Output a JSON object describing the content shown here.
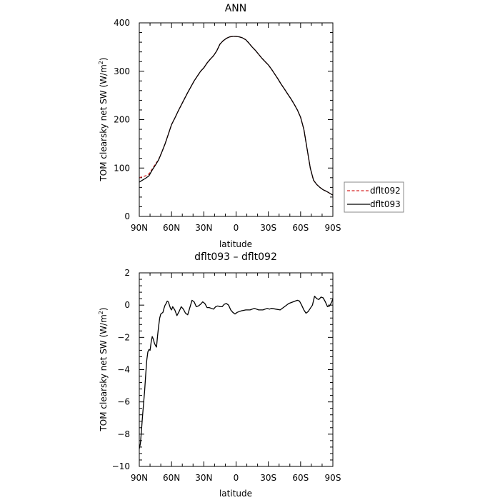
{
  "chart_data": [
    {
      "type": "line",
      "title": "ANN",
      "xlabel": "latitude",
      "ylabel": "TOM clearsky net SW (W/m²)",
      "ylabel_text": "TOM clearsky net SW (W/m",
      "ylabel_sup": "2",
      "ylabel_close": ")",
      "xlim": [
        90,
        -90
      ],
      "ylim": [
        0,
        400
      ],
      "xticks": [
        90,
        60,
        30,
        0,
        -30,
        -60,
        -90
      ],
      "xtick_labels": [
        "90N",
        "60N",
        "30N",
        "0",
        "30S",
        "60S",
        "90S"
      ],
      "yticks": [
        0,
        100,
        200,
        300,
        400
      ],
      "ytick_labels": [
        "0",
        "100",
        "200",
        "300",
        "400"
      ],
      "legend_position": "right, outside plot",
      "series": [
        {
          "name": "dflt092",
          "color": "#d62728",
          "dash": "dashed",
          "x": [
            90,
            87,
            84,
            81,
            78,
            75,
            72,
            69,
            66,
            63,
            60,
            57,
            54,
            51,
            48,
            45,
            42,
            39,
            36,
            33,
            30,
            27,
            24,
            21,
            18,
            15,
            12,
            9,
            6,
            3,
            0,
            -3,
            -6,
            -9,
            -12,
            -15,
            -18,
            -21,
            -24,
            -27,
            -30,
            -33,
            -36,
            -39,
            -42,
            -45,
            -48,
            -51,
            -54,
            -57,
            -60,
            -63,
            -66,
            -69,
            -72,
            -75,
            -78,
            -81,
            -84,
            -87,
            -90
          ],
          "y": [
            80,
            82,
            84,
            88,
            98,
            108,
            118,
            133,
            150,
            170,
            190,
            203,
            217,
            230,
            243,
            256,
            268,
            280,
            290,
            300,
            307,
            317,
            325,
            332,
            342,
            356,
            363,
            368,
            371,
            372,
            372,
            371,
            369,
            365,
            358,
            350,
            343,
            335,
            327,
            320,
            313,
            304,
            294,
            284,
            273,
            263,
            253,
            243,
            232,
            220,
            205,
            180,
            140,
            100,
            75,
            66,
            60,
            55,
            52,
            48,
            44
          ]
        },
        {
          "name": "dflt093",
          "color": "#000000",
          "dash": "solid",
          "x": [
            90,
            87,
            84,
            81,
            78,
            75,
            72,
            69,
            66,
            63,
            60,
            57,
            54,
            51,
            48,
            45,
            42,
            39,
            36,
            33,
            30,
            27,
            24,
            21,
            18,
            15,
            12,
            9,
            6,
            3,
            0,
            -3,
            -6,
            -9,
            -12,
            -15,
            -18,
            -21,
            -24,
            -27,
            -30,
            -33,
            -36,
            -39,
            -42,
            -45,
            -48,
            -51,
            -54,
            -57,
            -60,
            -63,
            -66,
            -69,
            -72,
            -75,
            -78,
            -81,
            -84,
            -87,
            -90
          ],
          "y": [
            71,
            75,
            79,
            84,
            96,
            106,
            117,
            133,
            150,
            170,
            190,
            203,
            217,
            230,
            243,
            256,
            268,
            280,
            290,
            300,
            307,
            317,
            325,
            332,
            342,
            356,
            363,
            368,
            371,
            372,
            372,
            371,
            369,
            365,
            358,
            350,
            343,
            335,
            327,
            320,
            313,
            304,
            294,
            284,
            273,
            263,
            253,
            243,
            232,
            220,
            205,
            180,
            140,
            100,
            75,
            66,
            60,
            55,
            52,
            48,
            44
          ]
        }
      ]
    },
    {
      "type": "line",
      "title": "dflt093 – dflt092",
      "xlabel": "latitude",
      "ylabel": "TOM clearsky net SW (W/m²)",
      "ylabel_text": "TOM clearsky net SW (W/m",
      "ylabel_sup": "2",
      "ylabel_close": ")",
      "xlim": [
        90,
        -90
      ],
      "ylim": [
        -10,
        2
      ],
      "xticks": [
        90,
        60,
        30,
        0,
        -30,
        -60,
        -90
      ],
      "xtick_labels": [
        "90N",
        "60N",
        "30N",
        "0",
        "30S",
        "60S",
        "90S"
      ],
      "yticks": [
        -10,
        -8,
        -6,
        -4,
        -2,
        0,
        2
      ],
      "ytick_labels": [
        "−10",
        "−8",
        "−6",
        "−4",
        "−2",
        "0",
        "2"
      ],
      "series": [
        {
          "color": "#000000",
          "dash": "solid",
          "x": [
            90,
            89,
            88,
            87,
            86,
            85,
            84,
            83,
            82,
            81,
            80,
            79,
            78,
            77,
            76,
            75,
            74,
            73,
            72,
            71,
            70,
            69,
            68,
            67,
            66,
            65,
            64,
            63,
            62,
            61,
            60,
            59,
            57,
            55,
            53,
            51,
            49,
            47,
            45,
            43,
            41,
            39,
            37,
            35,
            33,
            31,
            29,
            27,
            25,
            23,
            21,
            19,
            17,
            15,
            13,
            11,
            9,
            7,
            5,
            3,
            1,
            -1,
            -3,
            -5,
            -9,
            -13,
            -17,
            -21,
            -25,
            -29,
            -31,
            -33,
            -37,
            -41,
            -45,
            -49,
            -53,
            -57,
            -59,
            -61,
            -63,
            -65,
            -67,
            -69,
            -71,
            -73,
            -75,
            -77,
            -79,
            -81,
            -83,
            -85,
            -87,
            -89,
            -90
          ],
          "y": [
            -8.9,
            -8.6,
            -7.8,
            -6.9,
            -6.1,
            -5.3,
            -4.3,
            -3.4,
            -2.9,
            -2.75,
            -2.8,
            -2.3,
            -1.95,
            -2.1,
            -2.35,
            -2.5,
            -2.6,
            -1.9,
            -1.3,
            -0.8,
            -0.55,
            -0.5,
            -0.45,
            -0.2,
            0.0,
            0.1,
            0.25,
            0.2,
            0.0,
            -0.2,
            -0.3,
            -0.1,
            -0.3,
            -0.65,
            -0.4,
            -0.1,
            -0.25,
            -0.5,
            -0.6,
            -0.15,
            0.3,
            0.2,
            -0.1,
            -0.05,
            0.05,
            0.2,
            0.1,
            -0.15,
            -0.15,
            -0.2,
            -0.25,
            -0.1,
            -0.05,
            -0.1,
            -0.1,
            0.05,
            0.1,
            0.0,
            -0.3,
            -0.45,
            -0.55,
            -0.45,
            -0.4,
            -0.35,
            -0.3,
            -0.3,
            -0.2,
            -0.3,
            -0.3,
            -0.2,
            -0.25,
            -0.2,
            -0.25,
            -0.3,
            -0.1,
            0.1,
            0.2,
            0.3,
            0.25,
            0.0,
            -0.3,
            -0.5,
            -0.4,
            -0.2,
            0.0,
            0.55,
            0.4,
            0.35,
            0.5,
            0.45,
            0.2,
            -0.1,
            -0.05,
            0.2,
            0.4
          ]
        }
      ]
    }
  ]
}
